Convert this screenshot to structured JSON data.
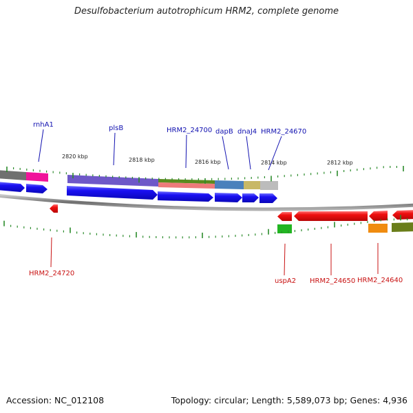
{
  "title": "Desulfobacterium autotrophicum HRM2, complete genome",
  "accession": "Accession: NC_012108",
  "stats": "Topology: circular; Length: 5,589,073 bp; Genes: 4,936",
  "axis_ticks": [
    "2820 kbp",
    "2818 kbp",
    "2816 kbp",
    "2814 kbp",
    "2812 kbp"
  ],
  "colors": {
    "gene_blue": "#1a0ff0",
    "gene_red": "#ee0a0a",
    "label_forward": "#1010b0",
    "label_reverse": "#c81010",
    "backbone": "#808080",
    "tick": "#2a8a2a"
  },
  "forward_labels": [
    "rnhA1",
    "plsB",
    "HRM2_24700",
    "dapB",
    "dnaJ4",
    "HRM2_24670"
  ],
  "reverse_labels": [
    "HRM2_24720",
    "uspA2",
    "HRM2_24650",
    "HRM2_24640"
  ],
  "forward_cog_color_names": [
    "gray",
    "magenta",
    "purple",
    "olive-green",
    "salmon",
    "steel-blue",
    "khaki",
    "light-gray"
  ],
  "reverse_cog_color_names": [
    "green",
    "orange",
    "olive-green"
  ]
}
